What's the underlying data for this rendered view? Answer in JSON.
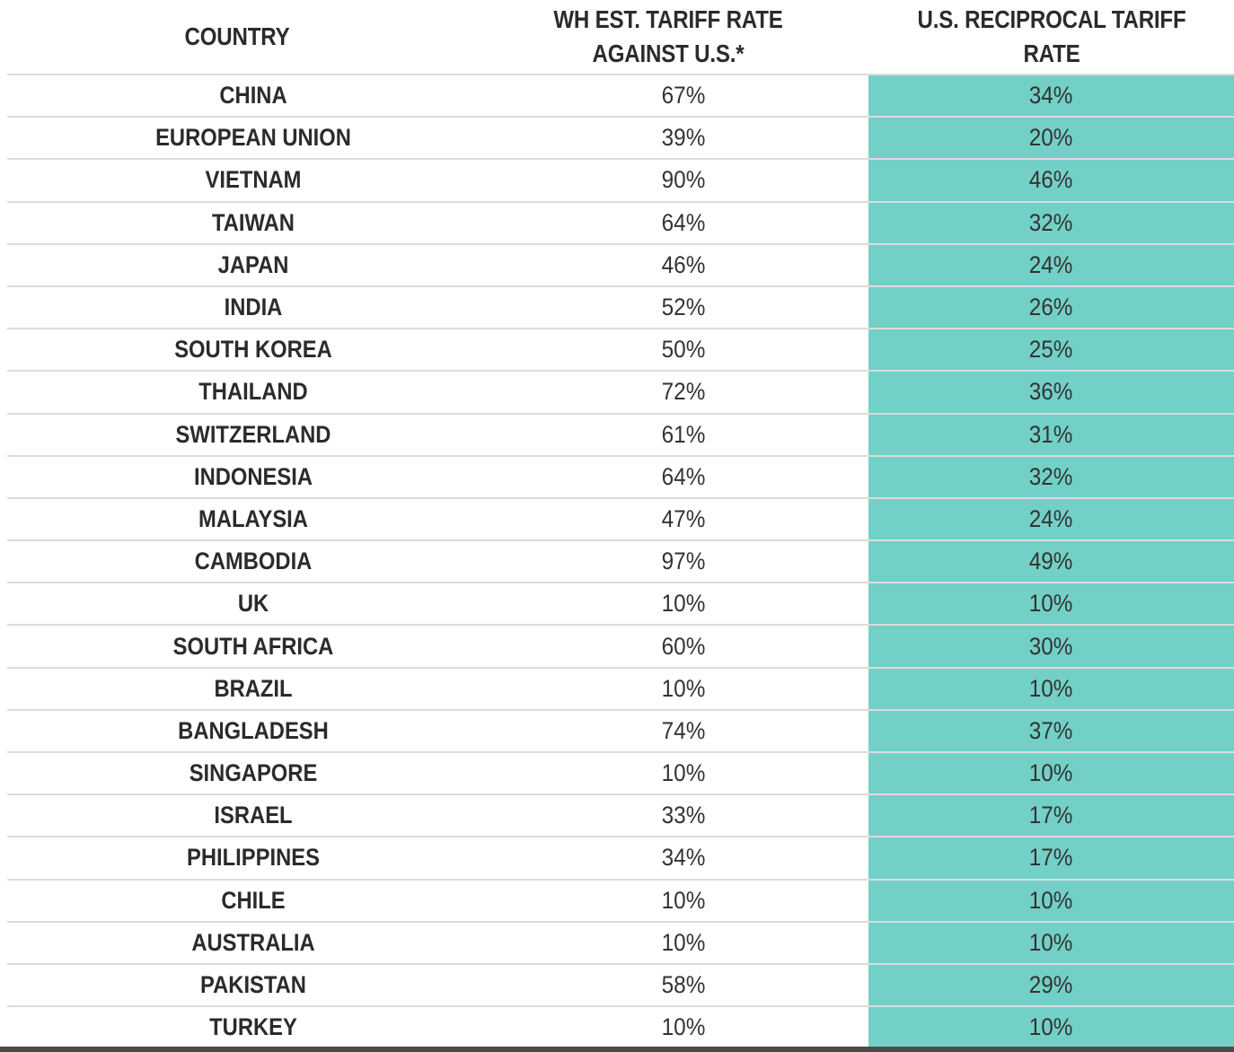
{
  "chart_data": {
    "type": "table",
    "columns": [
      "COUNTRY",
      "WH EST. TARIFF RATE\nAGAINST U.S.*",
      "U.S. RECIPROCAL TARIFF\nRATE"
    ],
    "highlight_color": "#73d0c6",
    "rows": [
      {
        "country": "CHINA",
        "wh": "67%",
        "us": "34%"
      },
      {
        "country": "EUROPEAN UNION",
        "wh": "39%",
        "us": "20%"
      },
      {
        "country": "VIETNAM",
        "wh": "90%",
        "us": "46%"
      },
      {
        "country": "TAIWAN",
        "wh": "64%",
        "us": "32%"
      },
      {
        "country": "JAPAN",
        "wh": "46%",
        "us": "24%"
      },
      {
        "country": "INDIA",
        "wh": "52%",
        "us": "26%"
      },
      {
        "country": "SOUTH KOREA",
        "wh": "50%",
        "us": "25%"
      },
      {
        "country": "THAILAND",
        "wh": "72%",
        "us": "36%"
      },
      {
        "country": "SWITZERLAND",
        "wh": "61%",
        "us": "31%"
      },
      {
        "country": "INDONESIA",
        "wh": "64%",
        "us": "32%"
      },
      {
        "country": "MALAYSIA",
        "wh": "47%",
        "us": "24%"
      },
      {
        "country": "CAMBODIA",
        "wh": "97%",
        "us": "49%"
      },
      {
        "country": "UK",
        "wh": "10%",
        "us": "10%"
      },
      {
        "country": "SOUTH AFRICA",
        "wh": "60%",
        "us": "30%"
      },
      {
        "country": "BRAZIL",
        "wh": "10%",
        "us": "10%"
      },
      {
        "country": "BANGLADESH",
        "wh": "74%",
        "us": "37%"
      },
      {
        "country": "SINGAPORE",
        "wh": "10%",
        "us": "10%"
      },
      {
        "country": "ISRAEL",
        "wh": "33%",
        "us": "17%"
      },
      {
        "country": "PHILIPPINES",
        "wh": "34%",
        "us": "17%"
      },
      {
        "country": "CHILE",
        "wh": "10%",
        "us": "10%"
      },
      {
        "country": "AUSTRALIA",
        "wh": "10%",
        "us": "10%"
      },
      {
        "country": "PAKISTAN",
        "wh": "58%",
        "us": "29%"
      },
      {
        "country": "TURKEY",
        "wh": "10%",
        "us": "10%"
      }
    ]
  }
}
